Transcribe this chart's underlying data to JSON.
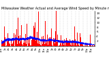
{
  "title": "Milwaukee Weather Actual and Average Wind Speed by Minute mph (Last 24 Hours)",
  "n_points": 1440,
  "ylim": [
    0,
    15
  ],
  "yticks": [
    2,
    4,
    6,
    8,
    10,
    12,
    14
  ],
  "background_color": "#ffffff",
  "bar_color": "#ff0000",
  "line_color": "#0000ff",
  "grid_color": "#888888",
  "title_fontsize": 3.5,
  "tick_fontsize": 3.0,
  "seed": 42,
  "avg_level": 4.5,
  "figsize": [
    1.6,
    0.87
  ],
  "dpi": 100
}
